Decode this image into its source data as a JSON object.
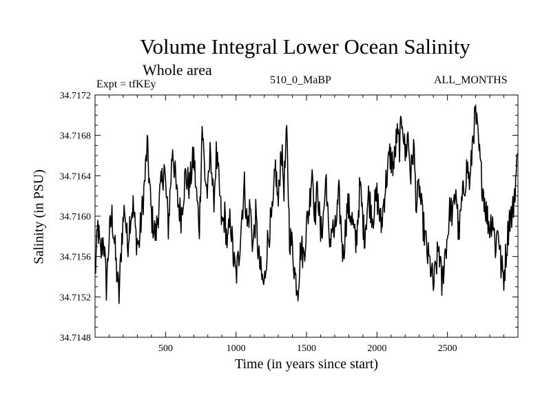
{
  "header": {
    "title": "Volume Integral Lower Ocean Salinity",
    "subtitle": "Whole area",
    "expt_label": "Expt = tfKEy",
    "center_label": "510_0_MaBP",
    "right_label": "ALL_MONTHS"
  },
  "colors": {
    "line": "#000000",
    "background": "#ffffff"
  },
  "chart_data": {
    "type": "line",
    "title": "Volume Integral Lower Ocean Salinity",
    "subtitle": "Whole area",
    "xlabel": "Time (in years since start)",
    "ylabel": "Salinity (in PSU)",
    "xlim": [
      0,
      3000
    ],
    "ylim": [
      34.7148,
      34.7172
    ],
    "x_ticks": [
      500,
      1000,
      1500,
      2000,
      2500
    ],
    "y_ticks": [
      34.7148,
      34.7152,
      34.7156,
      34.716,
      34.7164,
      34.7168,
      34.7172
    ],
    "x_tick_labels": [
      "500",
      "1000",
      "1500",
      "2000",
      "2500"
    ],
    "y_tick_labels": [
      "34.7148",
      "34.7152",
      "34.7156",
      "34.7160",
      "34.7164",
      "34.7168",
      "34.7172"
    ],
    "grid": false,
    "series": [
      {
        "x": [
          0,
          20,
          40,
          60,
          80,
          100,
          120,
          135,
          150,
          170,
          190,
          210,
          230,
          250,
          270,
          290,
          310,
          330,
          350,
          370,
          400,
          430,
          460,
          490,
          520,
          550,
          580,
          610,
          640,
          670,
          700,
          720,
          740,
          760,
          780,
          800,
          820,
          840,
          860,
          880,
          900,
          920,
          940,
          960,
          980,
          1000,
          1020,
          1040,
          1060,
          1080,
          1100,
          1120,
          1140,
          1160,
          1180,
          1200,
          1220,
          1240,
          1260,
          1280,
          1300,
          1320,
          1340,
          1360,
          1380,
          1400,
          1420,
          1440,
          1460,
          1480,
          1500,
          1520,
          1540,
          1560,
          1580,
          1600,
          1620,
          1640,
          1660,
          1680,
          1700,
          1730,
          1760,
          1790,
          1820,
          1850,
          1880,
          1910,
          1940,
          1970,
          2000,
          2030,
          2060,
          2090,
          2120,
          2140,
          2160,
          2180,
          2200,
          2220,
          2240,
          2260,
          2280,
          2300,
          2320,
          2340,
          2360,
          2380,
          2400,
          2420,
          2440,
          2460,
          2480,
          2500,
          2520,
          2540,
          2560,
          2580,
          2600,
          2620,
          2640,
          2660,
          2680,
          2700,
          2720,
          2740,
          2760,
          2780,
          2800,
          2820,
          2840,
          2860,
          2880,
          2900,
          2920,
          2940,
          2960,
          2980,
          3000
        ],
        "values": [
          34.7154,
          34.7159,
          34.7156,
          34.7158,
          34.7153,
          34.7158,
          34.716,
          34.7158,
          34.7155,
          34.7152,
          34.7158,
          34.7161,
          34.7157,
          34.716,
          34.7161,
          34.7158,
          34.7157,
          34.716,
          34.7163,
          34.7167,
          34.716,
          34.7158,
          34.7162,
          34.7165,
          34.7159,
          34.7167,
          34.7162,
          34.716,
          34.7164,
          34.7163,
          34.7166,
          34.7162,
          34.7159,
          34.7169,
          34.7164,
          34.7162,
          34.7167,
          34.7161,
          34.7166,
          34.7163,
          34.7159,
          34.716,
          34.7157,
          34.716,
          34.7156,
          34.7154,
          34.7156,
          34.716,
          34.7163,
          34.7159,
          34.7161,
          34.7157,
          34.716,
          34.7156,
          34.7154,
          34.7153,
          34.7157,
          34.7159,
          34.716,
          34.7165,
          34.7161,
          34.7167,
          34.7163,
          34.7168,
          34.7158,
          34.7157,
          34.7154,
          34.7153,
          34.7157,
          34.7156,
          34.7159,
          34.7161,
          34.7165,
          34.716,
          34.7163,
          34.7158,
          34.716,
          34.7164,
          34.7157,
          34.7159,
          34.7158,
          34.7162,
          34.7156,
          34.7161,
          34.716,
          34.7157,
          34.7163,
          34.7158,
          34.7162,
          34.716,
          34.7162,
          34.7159,
          34.7163,
          34.7166,
          34.7165,
          34.7168,
          34.7167,
          34.717,
          34.7166,
          34.7168,
          34.7164,
          34.7167,
          34.7161,
          34.7163,
          34.716,
          34.7158,
          34.7156,
          34.7155,
          34.7153,
          34.7155,
          34.7157,
          34.7153,
          34.7156,
          34.7158,
          34.7161,
          34.716,
          34.7163,
          34.7158,
          34.7161,
          34.7163,
          34.7165,
          34.7163,
          34.7168,
          34.717,
          34.7167,
          34.7164,
          34.7162,
          34.716,
          34.7159,
          34.716,
          34.7157,
          34.7159,
          34.7155,
          34.7154,
          34.7157,
          34.716,
          34.716,
          34.7163,
          34.7166
        ]
      }
    ]
  }
}
